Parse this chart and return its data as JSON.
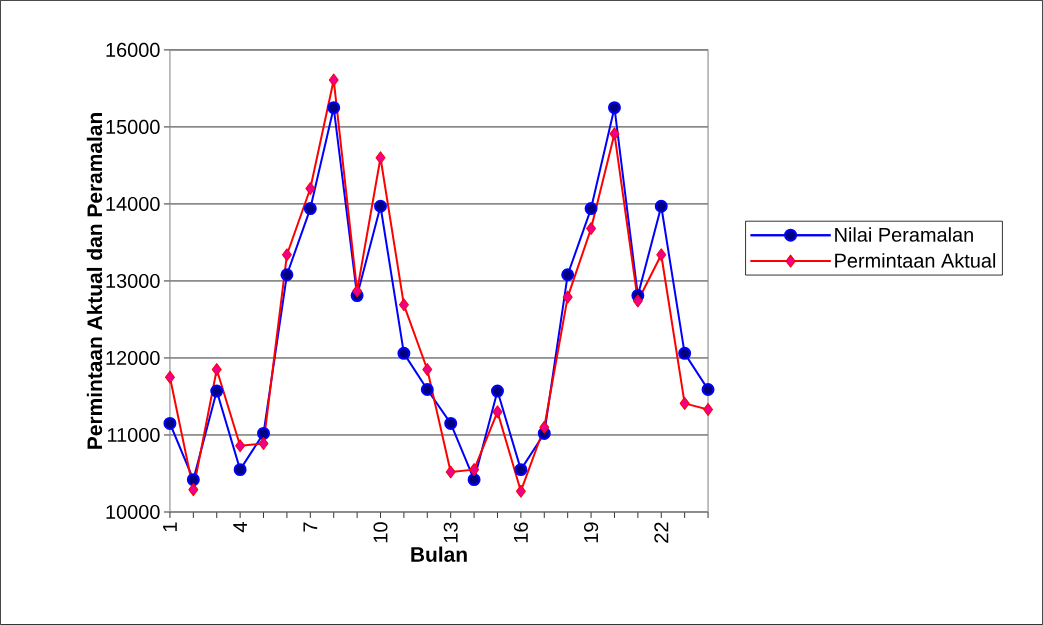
{
  "chart_data": {
    "type": "line",
    "xlabel": "Bulan",
    "ylabel": "Permintaan Aktual dan Peramalan",
    "categories": [
      "1",
      null,
      null,
      "4",
      null,
      null,
      "7",
      null,
      null,
      "10",
      null,
      null,
      "13",
      null,
      null,
      "16",
      null,
      null,
      "19",
      null,
      null,
      "22",
      null,
      null
    ],
    "series": [
      {
        "name": "Nilai Peramalan",
        "color": "#0000ff",
        "marker": "circle",
        "values": [
          11150,
          10420,
          11570,
          10550,
          11020,
          13080,
          13940,
          15250,
          12810,
          13970,
          12060,
          11590,
          11150,
          10420,
          11570,
          10550,
          11020,
          13080,
          13940,
          15250,
          12810,
          13970,
          12060,
          11590
        ]
      },
      {
        "name": "Permintaan Aktual",
        "color": "#ff0000",
        "marker": "diamond",
        "values": [
          11750,
          10290,
          11850,
          10860,
          10890,
          13340,
          14200,
          15610,
          12870,
          14600,
          12690,
          11850,
          10520,
          10550,
          11300,
          10270,
          11100,
          12790,
          13680,
          14910,
          12740,
          13340,
          11410,
          11330
        ]
      }
    ],
    "ylim": [
      10000,
      16000
    ],
    "yticks": [
      10000,
      11000,
      12000,
      13000,
      14000,
      15000,
      16000
    ],
    "grid": "y",
    "legend": "right",
    "line_style": "solid"
  }
}
